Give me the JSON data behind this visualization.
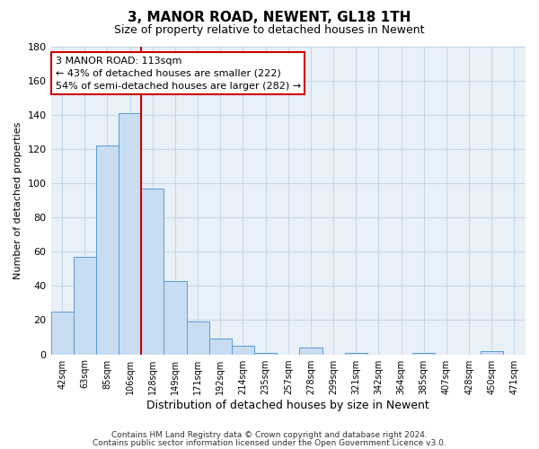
{
  "title": "3, MANOR ROAD, NEWENT, GL18 1TH",
  "subtitle": "Size of property relative to detached houses in Newent",
  "xlabel": "Distribution of detached houses by size in Newent",
  "ylabel": "Number of detached properties",
  "bar_labels": [
    "42sqm",
    "63sqm",
    "85sqm",
    "106sqm",
    "128sqm",
    "149sqm",
    "171sqm",
    "192sqm",
    "214sqm",
    "235sqm",
    "257sqm",
    "278sqm",
    "299sqm",
    "321sqm",
    "342sqm",
    "364sqm",
    "385sqm",
    "407sqm",
    "428sqm",
    "450sqm",
    "471sqm"
  ],
  "bar_values": [
    25,
    57,
    122,
    141,
    97,
    43,
    19,
    9,
    5,
    1,
    0,
    4,
    0,
    1,
    0,
    0,
    1,
    0,
    0,
    2,
    0
  ],
  "bar_color": "#c9ddf2",
  "bar_edge_color": "#5b9bd5",
  "ylim": [
    0,
    180
  ],
  "yticks": [
    0,
    20,
    40,
    60,
    80,
    100,
    120,
    140,
    160,
    180
  ],
  "redline_x": 3.5,
  "annotation_title": "3 MANOR ROAD: 113sqm",
  "annotation_line1": "← 43% of detached houses are smaller (222)",
  "annotation_line2": "54% of semi-detached houses are larger (282) →",
  "annotation_box_color": "#ffffff",
  "annotation_box_edge": "#cc0000",
  "redline_color": "#cc0000",
  "footer1": "Contains HM Land Registry data © Crown copyright and database right 2024.",
  "footer2": "Contains public sector information licensed under the Open Government Licence v3.0.",
  "background_color": "#ffffff",
  "grid_color": "#c8d8e8",
  "title_fontsize": 11,
  "subtitle_fontsize": 9,
  "ylabel_fontsize": 8,
  "xlabel_fontsize": 9,
  "tick_fontsize": 8,
  "xtick_fontsize": 7,
  "annotation_fontsize": 8,
  "footer_fontsize": 6.5
}
